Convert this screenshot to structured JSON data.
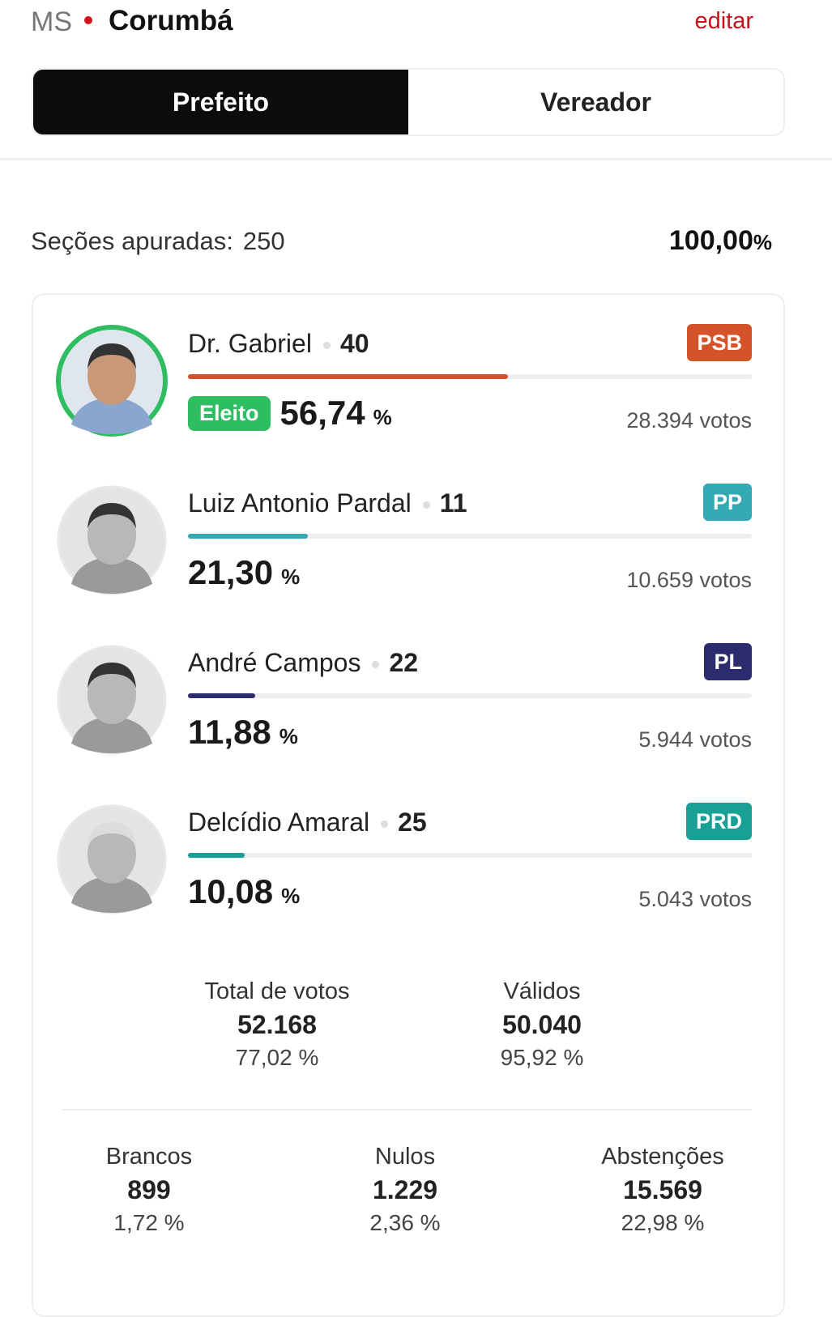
{
  "header": {
    "state": "MS",
    "city": "Corumbá",
    "edit": "editar"
  },
  "tabs": [
    "Prefeito",
    "Vereador"
  ],
  "sections": {
    "label": "Seções apuradas:",
    "count": "250",
    "percent": "100,00",
    "percent_unit": "%"
  },
  "candidates": [
    {
      "name": "Dr. Gabriel",
      "number": "40",
      "party": "PSB",
      "color": "#d5532b",
      "status": "Eleito",
      "percent": {
        "value": 56.74,
        "label": "56,74"
      },
      "unit": "%",
      "votes": "28.394 votos"
    },
    {
      "name": "Luiz Antonio Pardal",
      "number": "11",
      "party": "PP",
      "color": "#33a9b3",
      "percent": {
        "value": 21.3,
        "label": "21,30"
      },
      "unit": "%",
      "votes": "10.659 votos"
    },
    {
      "name": "André Campos",
      "number": "22",
      "party": "PL",
      "color": "#2b2b6e",
      "percent": {
        "value": 11.88,
        "label": "11,88"
      },
      "unit": "%",
      "votes": "5.944 votos"
    },
    {
      "name": "Delcídio Amaral",
      "number": "25",
      "party": "PRD",
      "color": "#17a093",
      "percent": {
        "value": 10.08,
        "label": "10,08"
      },
      "unit": "%",
      "votes": "5.043 votos"
    }
  ],
  "totals": [
    {
      "label": "Total de votos",
      "value": "52.168",
      "percent": "77,02 %"
    },
    {
      "label": "Válidos",
      "value": "50.040",
      "percent": "95,92 %"
    }
  ],
  "breakdown": [
    {
      "label": "Brancos",
      "value": "899",
      "percent": "1,72 %"
    },
    {
      "label": "Nulos",
      "value": "1.229",
      "percent": "2,36 %"
    },
    {
      "label": "Abstenções",
      "value": "15.569",
      "percent": "22,98 %"
    }
  ]
}
